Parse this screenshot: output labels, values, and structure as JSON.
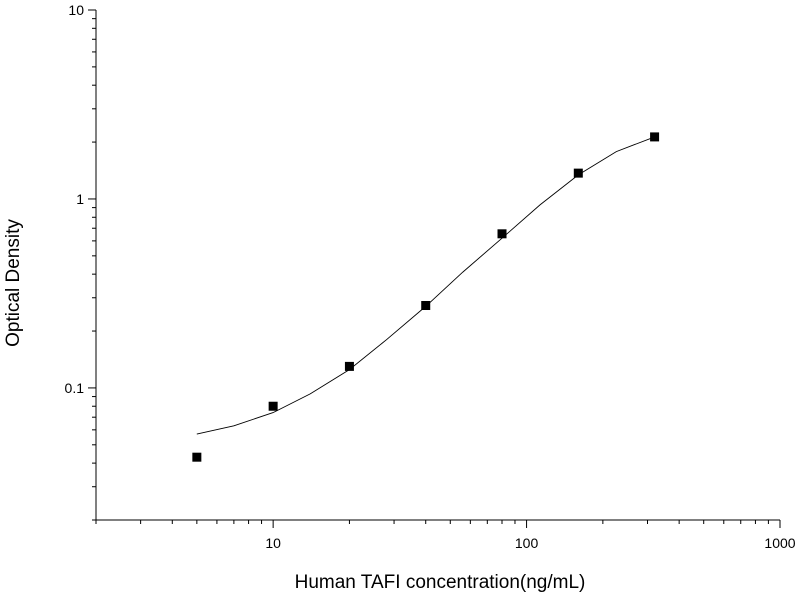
{
  "chart_data": {
    "type": "scatter",
    "title": "",
    "xlabel": "Human TAFI concentration(ng/mL)",
    "ylabel": "Optical Density",
    "x_scale": "log",
    "y_scale": "log",
    "xlim": [
      2,
      1000
    ],
    "ylim": [
      0.02,
      10
    ],
    "x_tick_labels": [
      "10",
      "100",
      "1000"
    ],
    "y_tick_labels": [
      "0.1",
      "1",
      "10"
    ],
    "grid": false,
    "legend": "none",
    "series": [
      {
        "marker": "square",
        "x": [
          5,
          10,
          20,
          40,
          80,
          160,
          320
        ],
        "y": [
          0.043,
          0.08,
          0.13,
          0.273,
          0.654,
          1.37,
          2.13
        ]
      }
    ],
    "fit_curve": {
      "x": [
        5,
        7,
        10,
        14,
        20,
        28,
        40,
        56,
        80,
        113,
        160,
        226,
        320
      ],
      "y": [
        0.057,
        0.063,
        0.074,
        0.093,
        0.125,
        0.18,
        0.27,
        0.41,
        0.62,
        0.93,
        1.34,
        1.78,
        2.13
      ]
    },
    "colors": {
      "marker": "#000000",
      "curve": "#000000",
      "axis": "#000000"
    }
  }
}
